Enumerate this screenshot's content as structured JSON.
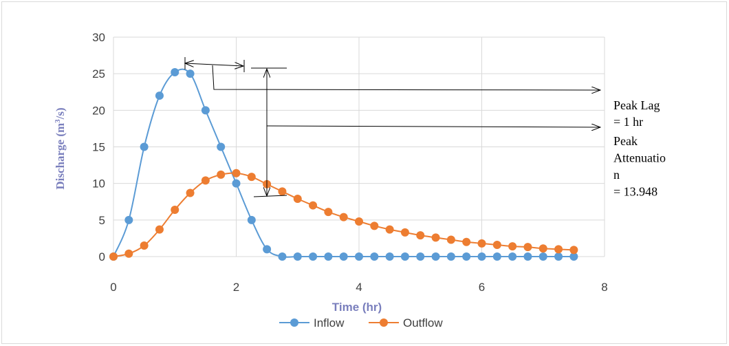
{
  "chart_data": {
    "type": "line",
    "title": "",
    "xlabel": "Time (hr)",
    "ylabel": "Discharge (m³/s)",
    "xlim": [
      0,
      8
    ],
    "ylim": [
      0,
      30
    ],
    "x_ticks": [
      0,
      2,
      4,
      6,
      8
    ],
    "y_ticks": [
      0,
      5,
      10,
      15,
      20,
      25,
      30
    ],
    "grid": true,
    "legend_position": "bottom",
    "series": [
      {
        "name": "Inflow",
        "color": "#5b9bd5",
        "x": [
          0,
          0.25,
          0.5,
          0.75,
          1.0,
          1.25,
          1.5,
          1.75,
          2.0,
          2.25,
          2.5,
          2.75,
          3.0,
          3.25,
          3.5,
          3.75,
          4.0,
          4.25,
          4.5,
          4.75,
          5.0,
          5.25,
          5.5,
          5.75,
          6.0,
          6.25,
          6.5,
          6.75,
          7.0,
          7.25,
          7.5
        ],
        "values": [
          0,
          5,
          15,
          22,
          25.2,
          25,
          20,
          15,
          10,
          5,
          1,
          0,
          0,
          0,
          0,
          0,
          0,
          0,
          0,
          0,
          0,
          0,
          0,
          0,
          0,
          0,
          0,
          0,
          0,
          0,
          0
        ]
      },
      {
        "name": "Outflow",
        "color": "#ed7d31",
        "x": [
          0,
          0.25,
          0.5,
          0.75,
          1.0,
          1.25,
          1.5,
          1.75,
          2.0,
          2.25,
          2.5,
          2.75,
          3.0,
          3.25,
          3.5,
          3.75,
          4.0,
          4.25,
          4.5,
          4.75,
          5.0,
          5.25,
          5.5,
          5.75,
          6.0,
          6.25,
          6.5,
          6.75,
          7.0,
          7.25,
          7.5
        ],
        "values": [
          0,
          0.4,
          1.5,
          3.7,
          6.4,
          8.7,
          10.4,
          11.2,
          11.4,
          10.9,
          9.9,
          8.9,
          7.9,
          7.0,
          6.1,
          5.4,
          4.8,
          4.2,
          3.7,
          3.3,
          2.9,
          2.6,
          2.3,
          2.0,
          1.8,
          1.6,
          1.4,
          1.3,
          1.1,
          1.0,
          0.9
        ]
      }
    ],
    "annotations": {
      "peak_lag": [
        "Peak Lag",
        "= 1 hr"
      ],
      "peak_attenuation": [
        "Peak",
        "Attenuatio",
        "n",
        "= 13.948"
      ]
    }
  }
}
